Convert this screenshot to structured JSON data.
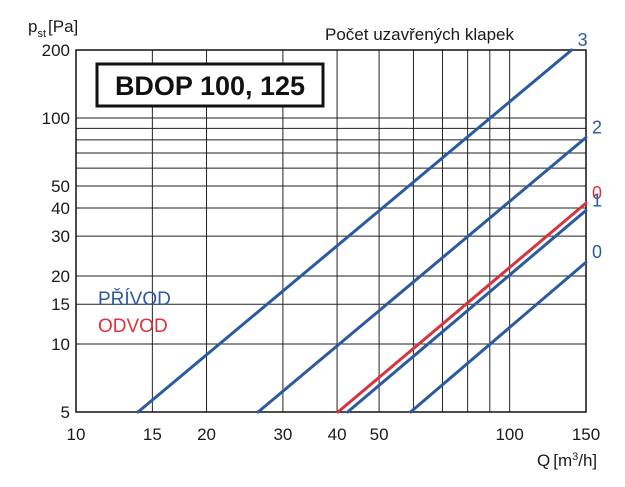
{
  "chart_data": {
    "type": "line",
    "title": "BDOP 100, 125",
    "xlabel_main": "Q",
    "xlabel_unit_pre": "[m",
    "xlabel_unit_sup": "3",
    "xlabel_unit_post": "/h]",
    "ylabel_main": "p",
    "ylabel_sub": "st",
    "ylabel_unit": "[Pa]",
    "legend_title": "Počet uzavřených klapek",
    "x_scale": "log",
    "y_scale": "log",
    "xlim": [
      10,
      150
    ],
    "ylim": [
      5,
      200
    ],
    "x_ticks": [
      10,
      15,
      20,
      30,
      40,
      50,
      100,
      150
    ],
    "x_tick_labels": [
      "10",
      "15",
      "20",
      "30",
      "40",
      "50",
      "100",
      "150"
    ],
    "x_grid": [
      10,
      15,
      20,
      30,
      40,
      50,
      60,
      70,
      80,
      90,
      100,
      150
    ],
    "y_ticks": [
      5,
      10,
      15,
      20,
      30,
      40,
      50,
      100,
      200
    ],
    "y_tick_labels": [
      "5",
      "10",
      "15",
      "20",
      "30",
      "40",
      "50",
      "100",
      "200"
    ],
    "y_grid": [
      5,
      10,
      15,
      20,
      30,
      40,
      50,
      60,
      70,
      80,
      90,
      100,
      200
    ],
    "grid": true,
    "groups": [
      {
        "label": "PŘÍVOD",
        "color": "#2b5aa0"
      },
      {
        "label": "ODVOD",
        "color": "#d9343d"
      }
    ],
    "series": [
      {
        "name": "3",
        "group": "PŘÍVOD",
        "color": "#2b5aa0",
        "x": [
          13.9,
          139
        ],
        "y": [
          5,
          200
        ]
      },
      {
        "name": "2",
        "group": "PŘÍVOD",
        "color": "#2b5aa0",
        "x": [
          26.3,
          150
        ],
        "y": [
          5,
          82
        ]
      },
      {
        "name": "0",
        "group": "ODVOD",
        "color": "#d9343d",
        "x": [
          40.2,
          150
        ],
        "y": [
          5,
          42
        ]
      },
      {
        "name": "1",
        "group": "PŘÍVOD",
        "color": "#2b5aa0",
        "x": [
          42.3,
          150
        ],
        "y": [
          5,
          39
        ]
      },
      {
        "name": "0",
        "group": "PŘÍVOD",
        "color": "#2b5aa0",
        "x": [
          59.1,
          150
        ],
        "y": [
          5,
          23
        ]
      }
    ]
  }
}
